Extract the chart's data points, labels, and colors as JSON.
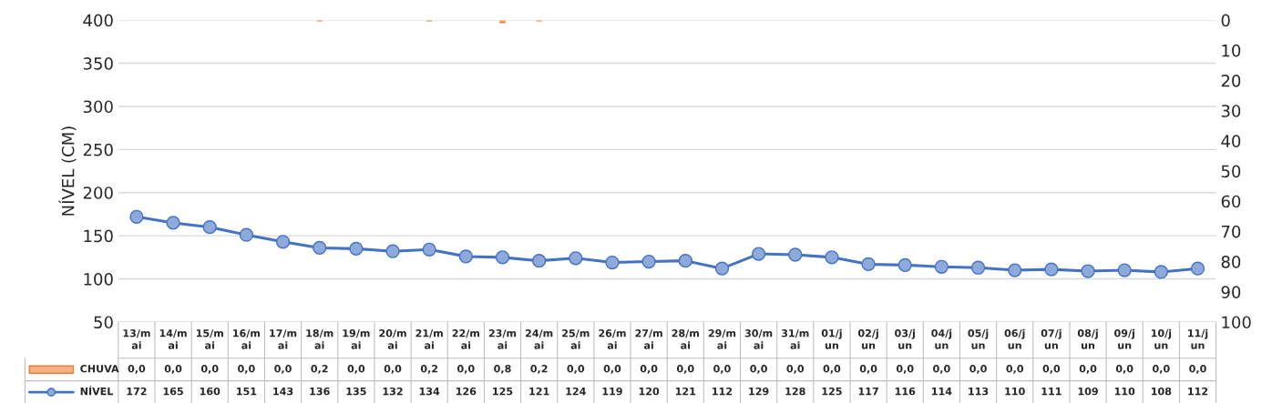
{
  "chart_data": {
    "type": "line",
    "ylabel": "NÍVEL (CM)",
    "categories": [
      "13/mai",
      "14/mai",
      "15/mai",
      "16/mai",
      "17/mai",
      "18/mai",
      "19/mai",
      "20/mai",
      "21/mai",
      "22/mai",
      "23/mai",
      "24/mai",
      "25/mai",
      "26/mai",
      "27/mai",
      "28/mai",
      "29/mai",
      "30/mai",
      "31/mai",
      "01/jun",
      "02/jun",
      "03/jun",
      "04/jun",
      "05/jun",
      "06/jun",
      "07/jun",
      "08/jun",
      "09/jun",
      "10/jun",
      "11/jun"
    ],
    "series": [
      {
        "name": "CHUVA",
        "type": "bar",
        "axis": "y2",
        "color": "#f4b183",
        "values": [
          0,
          0,
          0,
          0,
          0,
          0.2,
          0,
          0,
          0.2,
          0,
          0.8,
          0.2,
          0,
          0,
          0,
          0,
          0,
          0,
          0,
          0,
          0,
          0,
          0,
          0,
          0,
          0,
          0,
          0,
          0,
          0
        ],
        "value_labels": [
          "0,0",
          "0,0",
          "0,0",
          "0,0",
          "0,0",
          "0,2",
          "0,0",
          "0,0",
          "0,2",
          "0,0",
          "0,8",
          "0,2",
          "0,0",
          "0,0",
          "0,0",
          "0,0",
          "0,0",
          "0,0",
          "0,0",
          "0,0",
          "0,0",
          "0,0",
          "0,0",
          "0,0",
          "0,0",
          "0,0",
          "0,0",
          "0,0",
          "0,0",
          "0,0"
        ]
      },
      {
        "name": "NÍVEL",
        "color": "#4472c4",
        "marker": "circle",
        "values": [
          172,
          165,
          160,
          151,
          143,
          136,
          135,
          132,
          134,
          126,
          125,
          121,
          124,
          119,
          120,
          121,
          112,
          129,
          128,
          125,
          117,
          116,
          114,
          113,
          110,
          111,
          109,
          110,
          108,
          112
        ],
        "value_labels": [
          "172",
          "165",
          "160",
          "151",
          "143",
          "136",
          "135",
          "132",
          "134",
          "126",
          "125",
          "121",
          "124",
          "119",
          "120",
          "121",
          "112",
          "129",
          "128",
          "125",
          "117",
          "116",
          "114",
          "113",
          "110",
          "111",
          "109",
          "110",
          "108",
          "112"
        ]
      }
    ],
    "ylim": [
      50,
      400
    ],
    "yticks": [
      50,
      100,
      150,
      200,
      250,
      300,
      350,
      400
    ],
    "y2lim": [
      100,
      0
    ],
    "y2ticks": [
      0,
      10,
      20,
      30,
      40,
      50,
      60,
      70,
      80,
      90,
      100
    ],
    "grid": "y",
    "legend": "bottom"
  }
}
